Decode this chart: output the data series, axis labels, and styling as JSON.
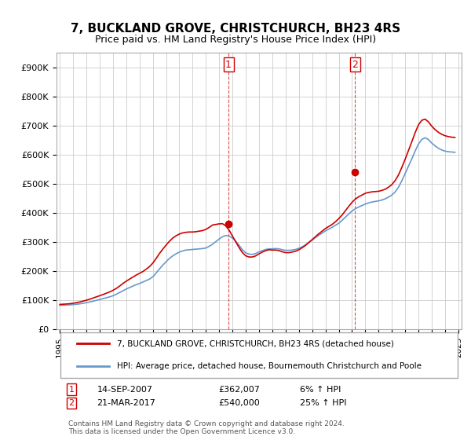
{
  "title": "7, BUCKLAND GROVE, CHRISTCHURCH, BH23 4RS",
  "subtitle": "Price paid vs. HM Land Registry's House Price Index (HPI)",
  "legend_line1": "7, BUCKLAND GROVE, CHRISTCHURCH, BH23 4RS (detached house)",
  "legend_line2": "HPI: Average price, detached house, Bournemouth Christchurch and Poole",
  "footer": "Contains HM Land Registry data © Crown copyright and database right 2024.\nThis data is licensed under the Open Government Licence v3.0.",
  "annotation1_label": "1",
  "annotation1_date": "14-SEP-2007",
  "annotation1_price": "£362,007",
  "annotation1_hpi": "6% ↑ HPI",
  "annotation2_label": "2",
  "annotation2_date": "21-MAR-2017",
  "annotation2_price": "£540,000",
  "annotation2_hpi": "25% ↑ HPI",
  "red_color": "#cc0000",
  "blue_color": "#6699cc",
  "annotation_color": "#cc0000",
  "grid_color": "#cccccc",
  "background_color": "#ffffff",
  "ylim": [
    0,
    950000
  ],
  "yticks": [
    0,
    100000,
    200000,
    300000,
    400000,
    500000,
    600000,
    700000,
    800000,
    900000
  ],
  "ytick_labels": [
    "£0",
    "£100K",
    "£200K",
    "£300K",
    "£400K",
    "£500K",
    "£600K",
    "£700K",
    "£800K",
    "£900K"
  ],
  "xticks": [
    1995,
    1996,
    1997,
    1998,
    1999,
    2000,
    2001,
    2002,
    2003,
    2004,
    2005,
    2006,
    2007,
    2008,
    2009,
    2010,
    2011,
    2012,
    2013,
    2014,
    2015,
    2016,
    2017,
    2018,
    2019,
    2020,
    2021,
    2022,
    2023,
    2024,
    2025
  ],
  "point1_x": 2007.7,
  "point1_y": 362007,
  "point2_x": 2017.22,
  "point2_y": 540000,
  "hpi_years": [
    1995.0,
    1995.25,
    1995.5,
    1995.75,
    1996.0,
    1996.25,
    1996.5,
    1996.75,
    1997.0,
    1997.25,
    1997.5,
    1997.75,
    1998.0,
    1998.25,
    1998.5,
    1998.75,
    1999.0,
    1999.25,
    1999.5,
    1999.75,
    2000.0,
    2000.25,
    2000.5,
    2000.75,
    2001.0,
    2001.25,
    2001.5,
    2001.75,
    2002.0,
    2002.25,
    2002.5,
    2002.75,
    2003.0,
    2003.25,
    2003.5,
    2003.75,
    2004.0,
    2004.25,
    2004.5,
    2004.75,
    2005.0,
    2005.25,
    2005.5,
    2005.75,
    2006.0,
    2006.25,
    2006.5,
    2006.75,
    2007.0,
    2007.25,
    2007.5,
    2007.75,
    2008.0,
    2008.25,
    2008.5,
    2008.75,
    2009.0,
    2009.25,
    2009.5,
    2009.75,
    2010.0,
    2010.25,
    2010.5,
    2010.75,
    2011.0,
    2011.25,
    2011.5,
    2011.75,
    2012.0,
    2012.25,
    2012.5,
    2012.75,
    2013.0,
    2013.25,
    2013.5,
    2013.75,
    2014.0,
    2014.25,
    2014.5,
    2014.75,
    2015.0,
    2015.25,
    2015.5,
    2015.75,
    2016.0,
    2016.25,
    2016.5,
    2016.75,
    2017.0,
    2017.25,
    2017.5,
    2017.75,
    2018.0,
    2018.25,
    2018.5,
    2018.75,
    2019.0,
    2019.25,
    2019.5,
    2019.75,
    2020.0,
    2020.25,
    2020.5,
    2020.75,
    2021.0,
    2021.25,
    2021.5,
    2021.75,
    2022.0,
    2022.25,
    2022.5,
    2022.75,
    2023.0,
    2023.25,
    2023.5,
    2023.75,
    2024.0,
    2024.25,
    2024.5,
    2024.75
  ],
  "hpi_values": [
    82000,
    82500,
    83000,
    83500,
    84500,
    85500,
    87000,
    89000,
    91000,
    93500,
    96000,
    99000,
    102000,
    105000,
    108000,
    111000,
    115000,
    120000,
    126000,
    132000,
    138000,
    143000,
    148000,
    153000,
    157000,
    162000,
    167000,
    172000,
    180000,
    193000,
    207000,
    220000,
    232000,
    243000,
    252000,
    259000,
    265000,
    269000,
    272000,
    273000,
    274000,
    275000,
    276000,
    277000,
    279000,
    285000,
    292000,
    301000,
    310000,
    318000,
    322000,
    320000,
    313000,
    302000,
    288000,
    273000,
    262000,
    258000,
    257000,
    260000,
    266000,
    270000,
    274000,
    276000,
    276000,
    277000,
    276000,
    273000,
    271000,
    271000,
    272000,
    274000,
    278000,
    283000,
    290000,
    298000,
    306000,
    315000,
    323000,
    330000,
    338000,
    344000,
    350000,
    357000,
    364000,
    374000,
    385000,
    396000,
    406000,
    414000,
    420000,
    425000,
    430000,
    434000,
    437000,
    439000,
    441000,
    444000,
    448000,
    454000,
    461000,
    472000,
    488000,
    510000,
    535000,
    560000,
    585000,
    612000,
    636000,
    652000,
    658000,
    652000,
    640000,
    630000,
    622000,
    616000,
    612000,
    610000,
    609000,
    608000
  ],
  "red_years": [
    1995.0,
    1995.25,
    1995.5,
    1995.75,
    1996.0,
    1996.25,
    1996.5,
    1996.75,
    1997.0,
    1997.25,
    1997.5,
    1997.75,
    1998.0,
    1998.25,
    1998.5,
    1998.75,
    1999.0,
    1999.25,
    1999.5,
    1999.75,
    2000.0,
    2000.25,
    2000.5,
    2000.75,
    2001.0,
    2001.25,
    2001.5,
    2001.75,
    2002.0,
    2002.25,
    2002.5,
    2002.75,
    2003.0,
    2003.25,
    2003.5,
    2003.75,
    2004.0,
    2004.25,
    2004.5,
    2004.75,
    2005.0,
    2005.25,
    2005.5,
    2005.75,
    2006.0,
    2006.25,
    2006.5,
    2006.75,
    2007.0,
    2007.25,
    2007.5,
    2007.75,
    2008.0,
    2008.25,
    2008.5,
    2008.75,
    2009.0,
    2009.25,
    2009.5,
    2009.75,
    2010.0,
    2010.25,
    2010.5,
    2010.75,
    2011.0,
    2011.25,
    2011.5,
    2011.75,
    2012.0,
    2012.25,
    2012.5,
    2012.75,
    2013.0,
    2013.25,
    2013.5,
    2013.75,
    2014.0,
    2014.25,
    2014.5,
    2014.75,
    2015.0,
    2015.25,
    2015.5,
    2015.75,
    2016.0,
    2016.25,
    2016.5,
    2016.75,
    2017.0,
    2017.25,
    2017.5,
    2017.75,
    2018.0,
    2018.25,
    2018.5,
    2018.75,
    2019.0,
    2019.25,
    2019.5,
    2019.75,
    2020.0,
    2020.25,
    2020.5,
    2020.75,
    2021.0,
    2021.25,
    2021.5,
    2021.75,
    2022.0,
    2022.25,
    2022.5,
    2022.75,
    2023.0,
    2023.25,
    2023.5,
    2023.75,
    2024.0,
    2024.25,
    2024.5,
    2024.75
  ],
  "red_values": [
    85000,
    85800,
    86500,
    87500,
    89000,
    91000,
    93500,
    96500,
    99500,
    103000,
    107000,
    111000,
    115000,
    119000,
    123500,
    128000,
    133500,
    140000,
    148000,
    157000,
    165000,
    172000,
    179000,
    186000,
    192000,
    198000,
    206000,
    215000,
    227000,
    243000,
    260000,
    275000,
    289000,
    302000,
    313000,
    321000,
    327000,
    331000,
    333000,
    334000,
    334000,
    335000,
    337000,
    339000,
    343000,
    350000,
    358000,
    360000,
    362000,
    362500,
    355000,
    340000,
    320000,
    300000,
    280000,
    263000,
    252000,
    248000,
    248000,
    252000,
    259000,
    265000,
    270000,
    273000,
    272000,
    272000,
    270000,
    266000,
    263000,
    263000,
    265000,
    268000,
    273000,
    280000,
    288000,
    298000,
    308000,
    318000,
    328000,
    337000,
    346000,
    353000,
    360000,
    369000,
    380000,
    392000,
    407000,
    422000,
    436000,
    447000,
    455000,
    461000,
    467000,
    470000,
    472000,
    473000,
    474000,
    477000,
    481000,
    488000,
    497000,
    511000,
    530000,
    556000,
    584000,
    614000,
    644000,
    675000,
    702000,
    718000,
    722000,
    713000,
    698000,
    686000,
    677000,
    670000,
    665000,
    662000,
    660000,
    659000
  ]
}
